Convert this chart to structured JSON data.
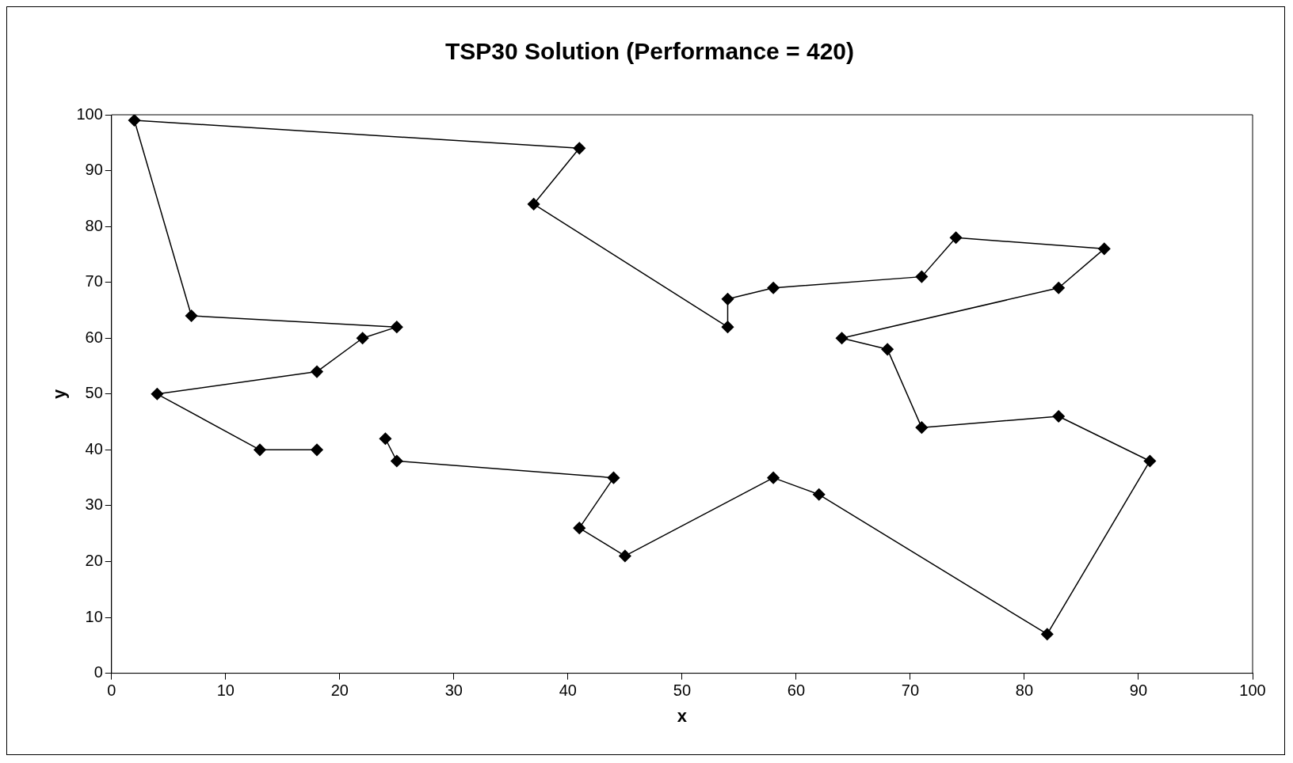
{
  "chart_data": {
    "type": "line",
    "title": "TSP30 Solution (Performance = 420)",
    "xlabel": "x",
    "ylabel": "y",
    "xlim": [
      0,
      100
    ],
    "xticks": [
      0,
      10,
      20,
      30,
      40,
      50,
      60,
      70,
      80,
      90,
      100
    ],
    "ylim": [
      0,
      100
    ],
    "yticks": [
      0,
      10,
      20,
      30,
      40,
      50,
      60,
      70,
      80,
      90,
      100
    ],
    "grid": false,
    "legend": false,
    "marker": "diamond",
    "line_style": "solid",
    "series": [
      {
        "color": "#000000",
        "x": [
          24,
          25,
          44,
          41,
          45,
          58,
          62,
          82,
          91,
          83,
          71,
          68,
          64,
          83,
          87,
          74,
          71,
          58,
          54,
          54,
          37,
          41,
          2,
          7,
          25,
          22,
          18,
          4,
          13,
          18
        ],
        "values": [
          42,
          38,
          35,
          26,
          21,
          35,
          32,
          7,
          38,
          46,
          44,
          58,
          60,
          69,
          76,
          78,
          71,
          69,
          67,
          62,
          84,
          94,
          99,
          64,
          62,
          60,
          54,
          50,
          40,
          40
        ]
      }
    ]
  }
}
